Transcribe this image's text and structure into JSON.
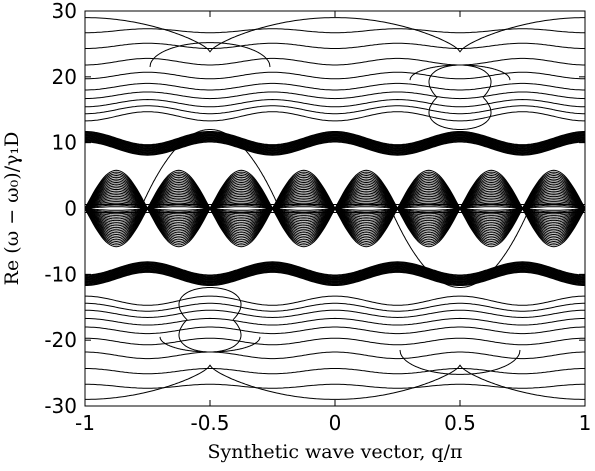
{
  "chart_data": {
    "type": "line",
    "xlabel": "Synthetic wave vector, q/π",
    "ylabel": "Re (ω − ω₀)/γ₁D",
    "xlim": [
      -1,
      1
    ],
    "ylim": [
      -30,
      30
    ],
    "x_ticks": [
      -1,
      -0.5,
      0,
      0.5,
      1
    ],
    "x_tick_labels": [
      "-1",
      "-0.5",
      "0",
      "0.5",
      "1"
    ],
    "y_ticks": [
      30,
      20,
      10,
      0,
      -10,
      -20,
      -30
    ],
    "y_tick_labels": [
      "30",
      "20",
      "10",
      "0",
      "-10",
      "-20",
      "-30"
    ],
    "grid": false,
    "line_color": "#000000",
    "upper_bands": [
      {
        "base": 14.0,
        "amp": 0.7,
        "period_q": 0.5
      },
      {
        "base": 15.0,
        "amp": 0.6,
        "period_q": 0.5
      },
      {
        "base": 16.0,
        "amp": 0.55,
        "period_q": 0.5
      },
      {
        "base": 17.2,
        "amp": 0.5,
        "period_q": 0.5
      },
      {
        "base": 18.5,
        "amp": 0.5,
        "period_q": 0.5
      },
      {
        "base": 20.2,
        "amp": 0.5,
        "period_q": 0.5
      },
      {
        "base": 22.3,
        "amp": 0.5,
        "period_q": 0.5
      },
      {
        "base": 24.7,
        "amp": 0.4,
        "period_q": 0.5
      },
      {
        "base": 27.0,
        "amp": 0.3,
        "period_q": 0.5
      }
    ],
    "thick_band": {
      "center": 9.9,
      "amp": 1.0,
      "spread": 1.6,
      "count": 16,
      "period_q": 0.5
    },
    "central_band": {
      "amp_max": 5.8,
      "count": 22,
      "period_q": 0.5
    },
    "top_curve": {
      "edge": 29.0,
      "mid": 23.8
    },
    "dome_curves": [
      {
        "q_center": -0.5,
        "half_width": 0.24,
        "base": 21.5,
        "peak": 25.2
      },
      {
        "q_center": 0.5,
        "half_width": 0.2,
        "base": 19.5,
        "peak": 21.8
      }
    ],
    "loop_curve": {
      "q_center": 0.5,
      "half_width": 0.18,
      "top": 21.8,
      "bottom": 12.0
    },
    "cross_curve": {
      "q_center": -0.5,
      "peak": 12.0
    }
  }
}
